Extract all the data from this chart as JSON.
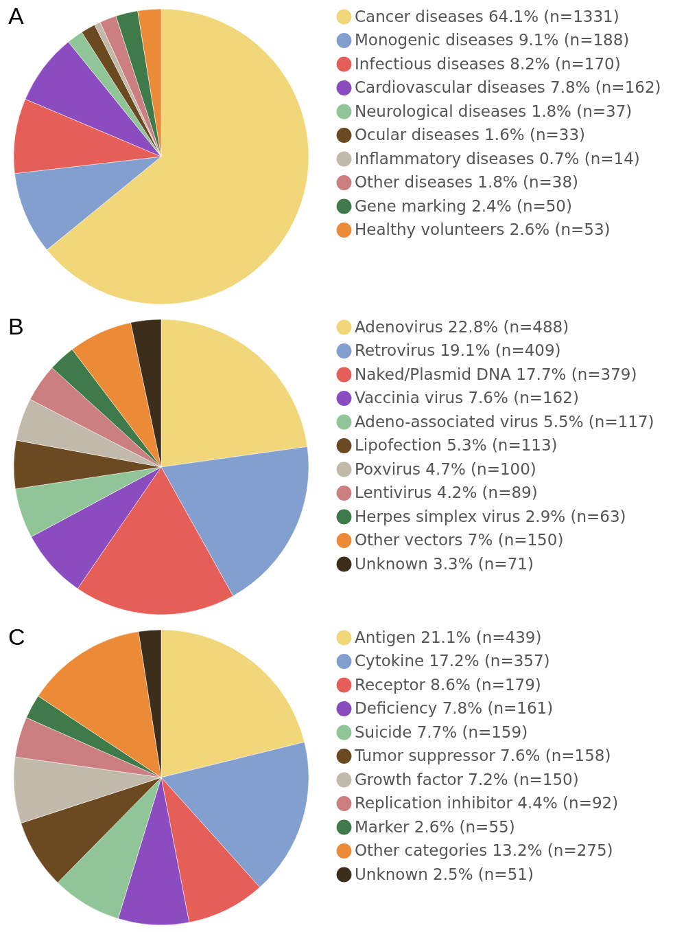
{
  "chart_data": [
    {
      "type": "pie",
      "title": "A",
      "legend": "right",
      "categories": [
        "Cancer diseases 64.1% (n=1331)",
        "Monogenic diseases 9.1% (n=188)",
        "Infectious diseases 8.2% (n=170)",
        "Cardiovascular diseases 7.8% (n=162)",
        "Neurological diseases 1.8% (n=37)",
        "Ocular diseases 1.6% (n=33)",
        "Inflammatory diseases 0.7% (n=14)",
        "Other diseases 1.8% (n=38)",
        "Gene marking 2.4% (n=50)",
        "Healthy volunteers 2.6% (n=53)"
      ],
      "values": [
        1331,
        188,
        170,
        162,
        37,
        33,
        14,
        38,
        50,
        53
      ],
      "colors": [
        "#f2d67a",
        "#829fd0",
        "#e55f58",
        "#8b4cc0",
        "#8fc597",
        "#6b4a22",
        "#c1b9aa",
        "#cc7f80",
        "#3f7a4a",
        "#ec8b37"
      ]
    },
    {
      "type": "pie",
      "title": "B",
      "legend": "right",
      "categories": [
        "Adenovirus 22.8% (n=488)",
        "Retrovirus 19.1% (n=409)",
        "Naked/Plasmid DNA 17.7% (n=379)",
        "Vaccinia virus 7.6% (n=162)",
        "Adeno-associated virus 5.5% (n=117)",
        "Lipofection 5.3% (n=113)",
        "Poxvirus 4.7% (n=100)",
        "Lentivirus 4.2% (n=89)",
        "Herpes simplex virus 2.9% (n=63)",
        "Other vectors 7% (n=150)",
        "Unknown 3.3% (n=71)"
      ],
      "values": [
        488,
        409,
        379,
        162,
        117,
        113,
        100,
        89,
        63,
        150,
        71
      ],
      "colors": [
        "#f2d67a",
        "#829fd0",
        "#e55f58",
        "#8b4cc0",
        "#8fc597",
        "#6b4a22",
        "#c1b9aa",
        "#cc7f80",
        "#3f7a4a",
        "#ec8b37",
        "#3d2e1c"
      ]
    },
    {
      "type": "pie",
      "title": "C",
      "legend": "right",
      "categories": [
        "Antigen 21.1% (n=439)",
        "Cytokine 17.2% (n=357)",
        "Receptor 8.6% (n=179)",
        "Deficiency 7.8% (n=161)",
        "Suicide 7.7% (n=159)",
        "Tumor suppressor 7.6% (n=158)",
        "Growth factor 7.2% (n=150)",
        "Replication inhibitor 4.4% (n=92)",
        "Marker 2.6% (n=55)",
        "Other categories 13.2% (n=275)",
        "Unknown 2.5% (n=51)"
      ],
      "values": [
        439,
        357,
        179,
        161,
        159,
        158,
        150,
        92,
        55,
        275,
        51
      ],
      "colors": [
        "#f2d67a",
        "#829fd0",
        "#e55f58",
        "#8b4cc0",
        "#8fc597",
        "#6b4a22",
        "#c1b9aa",
        "#cc7f80",
        "#3f7a4a",
        "#ec8b37",
        "#3d2e1c"
      ]
    }
  ]
}
